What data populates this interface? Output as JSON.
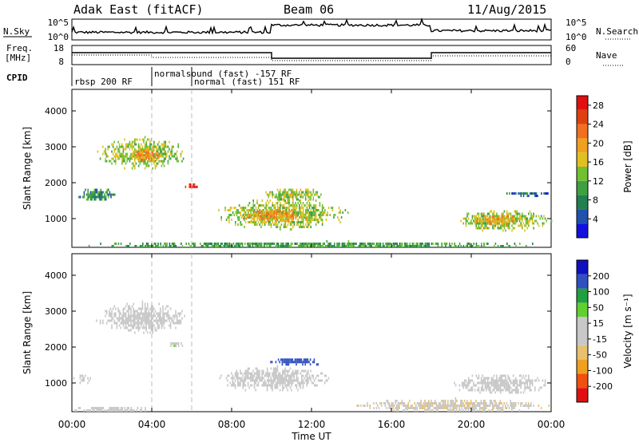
{
  "header": {
    "radar": "Adak East (fitACF)",
    "beam": "Beam 06",
    "date": "11/Aug/2015"
  },
  "noise_panel": {
    "left_label": "N.Sky",
    "right_label": "N.Search",
    "left_ticks": [
      "10^5",
      "10^0"
    ],
    "right_ticks": [
      "10^5",
      "10^0"
    ]
  },
  "freq_panel": {
    "left_label_1": "Freq.",
    "left_label_2": "[MHz]",
    "right_label": "Nave",
    "left_ticks": [
      "18",
      "8"
    ],
    "right_ticks": [
      "60",
      "0"
    ]
  },
  "cpid": {
    "label": "CPID",
    "segments": [
      {
        "text": "rbsp 200 RF",
        "start_hour": 0
      },
      {
        "text": "normalsound (fast) -157 RF",
        "start_hour": 4
      },
      {
        "text": "normal (fast) 151 RF",
        "start_hour": 6
      }
    ]
  },
  "colors": {
    "power_scale": [
      "#1010e0",
      "#2050b0",
      "#208050",
      "#40a040",
      "#70c030",
      "#e0c020",
      "#f0a020",
      "#f07020",
      "#e04010",
      "#e01010"
    ],
    "velocity_scale": [
      "#e01010",
      "#f05010",
      "#f0a020",
      "#e8c070",
      "#c8c8c8",
      "#c8c8c8",
      "#60d030",
      "#20a040",
      "#3050c0",
      "#1010c0"
    ],
    "scatter_ground": "#909090"
  },
  "chart_data": [
    {
      "type": "heatmap",
      "name": "power",
      "ylabel": "Slant Range [km]",
      "xlabel": "",
      "xlim": [
        0,
        24
      ],
      "ylim": [
        200,
        4600
      ],
      "x_tick_labels": [
        "00:00",
        "04:00",
        "08:00",
        "12:00",
        "16:00",
        "20:00",
        "00:00"
      ],
      "y_ticks": [
        1000,
        2000,
        3000,
        4000
      ],
      "colorbar": {
        "label": "Power [dB]",
        "ticks": [
          "4",
          "8",
          "12",
          "16",
          "20",
          "24",
          "28"
        ],
        "range": [
          0,
          30
        ]
      },
      "regions": [
        {
          "t0": 0.0,
          "t1": 24.0,
          "r0": 200,
          "r1": 400,
          "value": 10
        },
        {
          "t0": 1.2,
          "t1": 5.8,
          "r0": 2400,
          "r1": 3300,
          "value": 14
        },
        {
          "t0": 2.8,
          "t1": 4.5,
          "r0": 2600,
          "r1": 3000,
          "value": 20
        },
        {
          "t0": 0.2,
          "t1": 2.2,
          "r0": 1500,
          "r1": 1900,
          "value": 9
        },
        {
          "t0": 5.6,
          "t1": 6.4,
          "r0": 1850,
          "r1": 2050,
          "value": 28
        },
        {
          "t0": 7.2,
          "t1": 13.8,
          "r0": 700,
          "r1": 1600,
          "value": 14
        },
        {
          "t0": 8.5,
          "t1": 12.0,
          "r0": 900,
          "r1": 1300,
          "value": 20
        },
        {
          "t0": 9.5,
          "t1": 12.6,
          "r0": 1500,
          "r1": 1900,
          "value": 15
        },
        {
          "t0": 19.0,
          "t1": 24.0,
          "r0": 650,
          "r1": 1300,
          "value": 14
        },
        {
          "t0": 20.0,
          "t1": 22.5,
          "r0": 850,
          "r1": 1150,
          "value": 19
        },
        {
          "t0": 21.5,
          "t1": 24.0,
          "r0": 1650,
          "r1": 1800,
          "value": 6
        }
      ]
    },
    {
      "type": "heatmap",
      "name": "velocity",
      "ylabel": "Slant Range [km]",
      "xlabel": "Time UT",
      "xlim": [
        0,
        24
      ],
      "ylim": [
        200,
        4600
      ],
      "x_tick_labels": [
        "00:00",
        "04:00",
        "08:00",
        "12:00",
        "16:00",
        "20:00",
        "00:00"
      ],
      "y_ticks": [
        1000,
        2000,
        3000,
        4000
      ],
      "colorbar": {
        "label": "Velocity [m s⁻¹]",
        "ticks": [
          "200",
          "100",
          "50",
          "15",
          "-15",
          "-50",
          "-100",
          "-200"
        ],
        "range": [
          -250,
          250
        ]
      },
      "regions": [
        {
          "t0": 1.2,
          "t1": 5.8,
          "r0": 2400,
          "r1": 3300,
          "value": 0
        },
        {
          "t0": 7.0,
          "t1": 13.0,
          "r0": 800,
          "r1": 1500,
          "value": 30
        },
        {
          "t0": 9.8,
          "t1": 12.6,
          "r0": 1500,
          "r1": 1750,
          "value": 180
        },
        {
          "t0": 4.8,
          "t1": 5.6,
          "r0": 2000,
          "r1": 2200,
          "value": 40
        },
        {
          "t0": 19.0,
          "t1": 24.0,
          "r0": 700,
          "r1": 1300,
          "value": 0
        },
        {
          "t0": 14.0,
          "t1": 24.0,
          "r0": 200,
          "r1": 600,
          "value": -40
        },
        {
          "t0": 0.0,
          "t1": 4.0,
          "r0": 200,
          "r1": 400,
          "value": 30
        },
        {
          "t0": 0.0,
          "t1": 1.0,
          "r0": 1000,
          "r1": 1300,
          "value": 0
        }
      ]
    }
  ]
}
